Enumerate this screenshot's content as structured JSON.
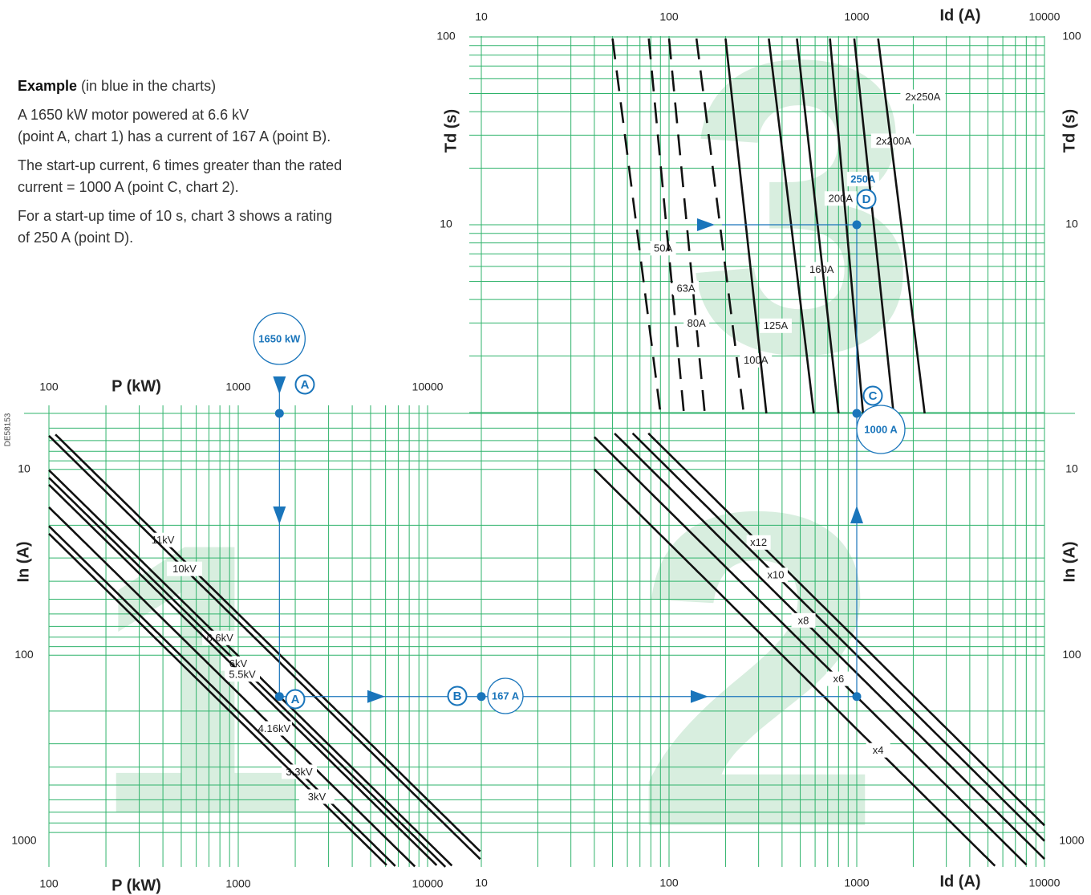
{
  "doc_ref": "DE58153",
  "example": {
    "title": "Example",
    "title_suffix": " (in blue in the charts)",
    "paragraphs": [
      [
        "A 1650 kW motor powered at 6.6 kV",
        "(point A, chart 1) has a current of 167 A (point B)."
      ],
      [
        "The start-up current, 6 times greater than the rated",
        "current = 1000 A (point C, chart 2)."
      ],
      [
        "For a start-up time of 10 s, chart 3 shows a rating",
        "of 250 A (point D)."
      ]
    ]
  },
  "colors": {
    "grid": "#2fb36b",
    "curve": "#111111",
    "accent": "#1a75bb",
    "watermark": "#d8eedf"
  },
  "chart_data": [
    {
      "type": "line",
      "chart_number": "1",
      "xlabel": "P (kW)",
      "ylabel": "In (A)",
      "x_scale": "log",
      "y_scale": "log",
      "y_inverted": true,
      "xlim": [
        100,
        20000
      ],
      "ylim": [
        5,
        1000
      ],
      "x_ticks": [
        "100",
        "1000",
        "10000"
      ],
      "y_ticks": [
        "10",
        "100",
        "1000"
      ],
      "series": [
        {
          "name": "11kV",
          "x": [
            100,
            20000
          ],
          "y": [
            6.0,
            1200
          ]
        },
        {
          "name": "10kV",
          "x": [
            100,
            20000
          ],
          "y": [
            6.6,
            1320
          ]
        },
        {
          "name": "6.6kV",
          "x": [
            100,
            20000
          ],
          "y": [
            10.1,
            2020
          ]
        },
        {
          "name": "6kV",
          "x": [
            100,
            20000
          ],
          "y": [
            11.1,
            2220
          ]
        },
        {
          "name": "5.5kV",
          "x": [
            100,
            20000
          ],
          "y": [
            12.1,
            2420
          ]
        },
        {
          "name": "4.16kV",
          "x": [
            100,
            20000
          ],
          "y": [
            16.0,
            3200
          ]
        },
        {
          "name": "3.3kV",
          "x": [
            100,
            20000
          ],
          "y": [
            20.2,
            4040
          ]
        },
        {
          "name": "3kV",
          "x": [
            100,
            20000
          ],
          "y": [
            22.2,
            4440
          ]
        }
      ],
      "series_label_x": [
        400,
        520,
        800,
        1000,
        1050,
        1550,
        2100,
        2600
      ]
    },
    {
      "type": "line",
      "chart_number": "2",
      "xlabel": "Id (A)",
      "ylabel": "In (A)",
      "x_scale": "log",
      "y_scale": "log",
      "y_inverted": true,
      "xlim": [
        10,
        10000
      ],
      "ylim": [
        5,
        1000
      ],
      "x_ticks": [
        "10",
        "100",
        "1000",
        "10000"
      ],
      "y_ticks": [
        "10",
        "100",
        "1000"
      ],
      "series": [
        {
          "name": "x12",
          "x": [
            40,
            10000
          ],
          "y": [
            3.3,
            833
          ]
        },
        {
          "name": "x10",
          "x": [
            40,
            10000
          ],
          "y": [
            4.0,
            1000
          ]
        },
        {
          "name": "x8",
          "x": [
            40,
            10000
          ],
          "y": [
            5.0,
            1250
          ]
        },
        {
          "name": "x6",
          "x": [
            40,
            10000
          ],
          "y": [
            6.7,
            1667
          ]
        },
        {
          "name": "x4",
          "x": [
            40,
            10000
          ],
          "y": [
            10.0,
            2500
          ]
        }
      ],
      "series_label_x": [
        300,
        370,
        520,
        800,
        1300
      ]
    },
    {
      "type": "line",
      "chart_number": "3",
      "xlabel": "Id (A)",
      "ylabel": "Td (s)",
      "x_scale": "log",
      "y_scale": "log",
      "xlim": [
        10,
        10000
      ],
      "ylim": [
        1,
        100
      ],
      "x_ticks": [
        "10",
        "100",
        "1000",
        "10000"
      ],
      "y_ticks": [
        "100",
        "10"
      ],
      "series": [
        {
          "name": "50A",
          "x_top": 50,
          "x_bottom": 90,
          "label_at": [
            93,
            7.5
          ],
          "dash": true
        },
        {
          "name": "63A",
          "x_top": 78,
          "x_bottom": 120,
          "label_at": [
            123,
            4.6
          ],
          "dash": true
        },
        {
          "name": "80A",
          "x_top": 100,
          "x_bottom": 155,
          "label_at": [
            140,
            3.0
          ],
          "dash": true
        },
        {
          "name": "100A",
          "x_top": 140,
          "x_bottom": 250,
          "label_at": [
            290,
            1.9
          ],
          "dash": true
        },
        {
          "name": "125A",
          "x_top": 200,
          "x_bottom": 330,
          "label_at": [
            370,
            2.9
          ],
          "dash": false
        },
        {
          "name": "160A",
          "x_top": 340,
          "x_bottom": 590,
          "label_at": [
            650,
            5.8
          ],
          "dash": false
        },
        {
          "name": "200A",
          "x_top": 480,
          "x_bottom": 800,
          "label_at": [
            820,
            13.8
          ],
          "dash": false
        },
        {
          "name": "250A",
          "x_top": 720,
          "x_bottom": 1080,
          "label_at": [
            1080,
            17.5
          ],
          "dash": false,
          "highlight": true
        },
        {
          "name": "2x200A",
          "x_top": 970,
          "x_bottom": 1570,
          "label_at": [
            1570,
            28
          ],
          "dash": false
        },
        {
          "name": "2x250A",
          "x_top": 1300,
          "x_bottom": 2300,
          "label_at": [
            2250,
            48
          ],
          "dash": false
        }
      ]
    }
  ],
  "example_points": {
    "A_top": {
      "letter": "A",
      "bubble": "1650 kW"
    },
    "A": {
      "letter": "A"
    },
    "B": {
      "letter": "B",
      "bubble": "167 A"
    },
    "C": {
      "letter": "C",
      "bubble": "1000 A"
    },
    "D": {
      "letter": "D"
    }
  }
}
